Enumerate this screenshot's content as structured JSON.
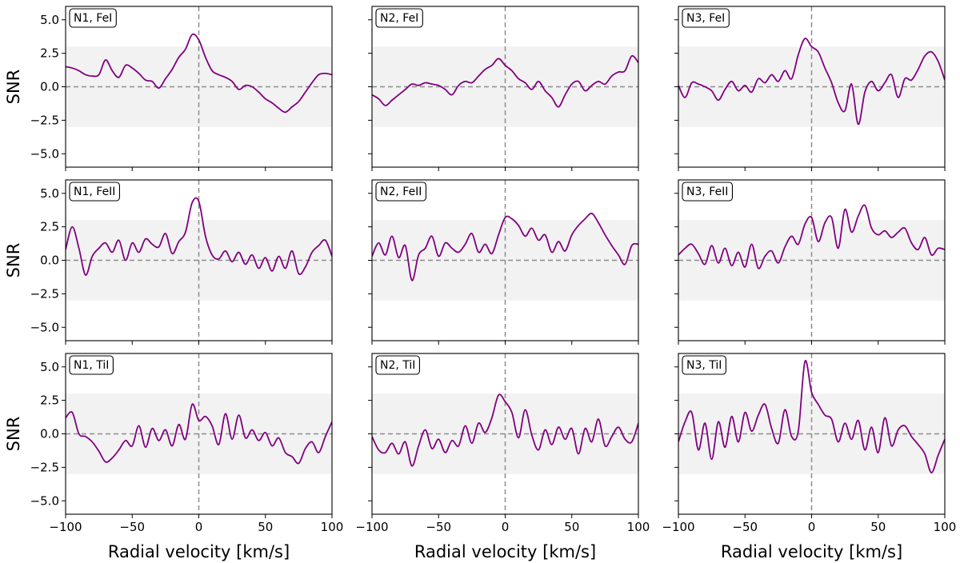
{
  "chart_data": {
    "type": "line",
    "figure": "Cross-correlation SNR maps (3 x 3 grid)",
    "xlabel": "Radial velocity [km/s]",
    "ylabel": "SNR",
    "xlim": [
      -100,
      100
    ],
    "ylim": [
      -6,
      6
    ],
    "xticks": [
      -100,
      -50,
      0,
      50,
      100
    ],
    "xtick_labels": [
      "−100",
      "−50",
      "0",
      "50",
      "100"
    ],
    "yticks": [
      5.0,
      2.5,
      0.0,
      -2.5,
      -5.0
    ],
    "ytick_labels": [
      "5.0",
      "2.5",
      "0.0",
      "−2.5",
      "−5.0"
    ],
    "significance_band": [
      -3,
      3
    ],
    "reference_lines": {
      "x": 0,
      "y": 0
    },
    "line_color": "#800080",
    "band_color": "#f2f2f2",
    "ref_line_color": "#8c8c8c",
    "panels": [
      {
        "label": "N1, FeI",
        "x": [
          -100,
          -95,
          -90,
          -85,
          -80,
          -75,
          -70,
          -65,
          -60,
          -55,
          -50,
          -45,
          -40,
          -35,
          -30,
          -25,
          -20,
          -15,
          -10,
          -5,
          0,
          5,
          10,
          15,
          20,
          25,
          30,
          35,
          40,
          45,
          50,
          55,
          60,
          65,
          70,
          75,
          80,
          85,
          90,
          95,
          100
        ],
        "y": [
          1.5,
          1.4,
          1.2,
          0.9,
          0.8,
          0.9,
          2.0,
          1.2,
          0.7,
          1.6,
          1.4,
          1.0,
          0.5,
          0.4,
          -0.1,
          0.6,
          1.3,
          2.2,
          2.8,
          3.9,
          3.5,
          2.2,
          1.2,
          0.9,
          0.7,
          0.4,
          -0.2,
          0.1,
          0.0,
          -0.4,
          -0.9,
          -1.2,
          -1.6,
          -1.9,
          -1.5,
          -1.1,
          -0.4,
          0.3,
          0.9,
          1.0,
          0.9
        ]
      },
      {
        "label": "N2, FeI",
        "x": [
          -100,
          -95,
          -90,
          -85,
          -80,
          -75,
          -70,
          -65,
          -60,
          -55,
          -50,
          -45,
          -40,
          -35,
          -30,
          -25,
          -20,
          -15,
          -10,
          -5,
          0,
          5,
          10,
          15,
          20,
          25,
          30,
          35,
          40,
          45,
          50,
          55,
          60,
          65,
          70,
          75,
          80,
          85,
          90,
          95,
          100
        ],
        "y": [
          -0.6,
          -0.9,
          -1.4,
          -1.0,
          -0.6,
          -0.2,
          0.2,
          0.1,
          0.3,
          0.2,
          0.1,
          -0.2,
          -0.6,
          0.1,
          0.4,
          0.3,
          0.8,
          1.3,
          1.6,
          2.1,
          1.6,
          1.2,
          0.6,
          0.3,
          -0.2,
          0.4,
          -0.3,
          -0.8,
          -1.5,
          -0.6,
          0.2,
          0.4,
          -0.3,
          0.1,
          0.4,
          0.2,
          0.8,
          1.1,
          1.2,
          2.3,
          1.8
        ]
      },
      {
        "label": "N3, FeI",
        "x": [
          -100,
          -95,
          -90,
          -85,
          -80,
          -75,
          -70,
          -65,
          -60,
          -55,
          -50,
          -45,
          -40,
          -35,
          -30,
          -25,
          -20,
          -15,
          -10,
          -5,
          0,
          5,
          10,
          15,
          20,
          25,
          30,
          35,
          40,
          45,
          50,
          55,
          60,
          65,
          70,
          75,
          80,
          85,
          90,
          95,
          100
        ],
        "y": [
          0.1,
          -0.8,
          0.3,
          0.2,
          0.0,
          -0.3,
          -1.0,
          -0.2,
          0.4,
          -0.3,
          0.1,
          -0.4,
          0.6,
          0.3,
          0.9,
          0.4,
          1.2,
          0.6,
          2.4,
          3.6,
          3.0,
          2.6,
          1.4,
          0.3,
          -1.2,
          -1.8,
          0.2,
          -2.8,
          -0.4,
          0.4,
          -0.3,
          0.3,
          0.9,
          -0.8,
          0.6,
          0.5,
          1.3,
          2.3,
          2.6,
          1.9,
          0.5
        ]
      },
      {
        "label": "N1, FeII",
        "x": [
          -100,
          -95,
          -90,
          -85,
          -80,
          -75,
          -70,
          -65,
          -60,
          -55,
          -50,
          -45,
          -40,
          -35,
          -30,
          -25,
          -20,
          -15,
          -10,
          -5,
          0,
          5,
          10,
          15,
          20,
          25,
          30,
          35,
          40,
          45,
          50,
          55,
          60,
          65,
          70,
          75,
          80,
          85,
          90,
          95,
          100
        ],
        "y": [
          0.8,
          2.5,
          0.9,
          -1.1,
          0.3,
          0.9,
          1.3,
          0.6,
          1.5,
          0.0,
          1.3,
          0.6,
          1.6,
          1.2,
          1.0,
          2.0,
          0.5,
          1.4,
          2.1,
          4.3,
          4.4,
          1.8,
          0.4,
          0.1,
          0.7,
          -0.1,
          0.6,
          -0.3,
          0.4,
          -0.6,
          0.2,
          -0.8,
          0.3,
          -0.6,
          0.7,
          -1.0,
          -0.5,
          0.6,
          1.1,
          1.5,
          0.3
        ]
      },
      {
        "label": "N2, FeII",
        "x": [
          -100,
          -95,
          -90,
          -85,
          -80,
          -75,
          -70,
          -65,
          -60,
          -55,
          -50,
          -45,
          -40,
          -35,
          -30,
          -25,
          -20,
          -15,
          -10,
          -5,
          0,
          5,
          10,
          15,
          20,
          25,
          30,
          35,
          40,
          45,
          50,
          55,
          60,
          65,
          70,
          75,
          80,
          85,
          90,
          95,
          100
        ],
        "y": [
          0.3,
          1.3,
          0.4,
          1.8,
          0.2,
          1.1,
          -1.5,
          0.4,
          0.9,
          1.8,
          0.3,
          1.3,
          0.9,
          0.6,
          1.2,
          2.0,
          0.6,
          1.2,
          0.5,
          1.9,
          3.2,
          3.1,
          2.6,
          1.8,
          2.4,
          1.5,
          1.9,
          0.6,
          1.4,
          0.7,
          1.9,
          2.6,
          3.1,
          3.5,
          2.8,
          1.9,
          1.1,
          0.4,
          -0.3,
          1.1,
          1.2
        ]
      },
      {
        "label": "N3, FeII",
        "x": [
          -100,
          -95,
          -90,
          -85,
          -80,
          -75,
          -70,
          -65,
          -60,
          -55,
          -50,
          -45,
          -40,
          -35,
          -30,
          -25,
          -20,
          -15,
          -10,
          -5,
          0,
          5,
          10,
          15,
          20,
          25,
          30,
          35,
          40,
          45,
          50,
          55,
          60,
          65,
          70,
          75,
          80,
          85,
          90,
          95,
          100
        ],
        "y": [
          0.4,
          0.9,
          1.2,
          0.5,
          -0.3,
          1.1,
          -0.2,
          0.9,
          -0.4,
          0.6,
          -0.5,
          1.2,
          -0.6,
          0.3,
          0.7,
          -0.2,
          1.0,
          1.8,
          1.2,
          2.7,
          3.2,
          1.4,
          2.8,
          3.2,
          0.9,
          3.8,
          2.1,
          3.3,
          4.1,
          2.4,
          1.9,
          2.2,
          1.7,
          2.1,
          2.4,
          1.3,
          0.8,
          1.7,
          0.4,
          0.9,
          0.8
        ]
      },
      {
        "label": "N1, TiI",
        "x": [
          -100,
          -95,
          -90,
          -85,
          -80,
          -75,
          -70,
          -65,
          -60,
          -55,
          -50,
          -45,
          -40,
          -35,
          -30,
          -25,
          -20,
          -15,
          -10,
          -5,
          0,
          5,
          10,
          15,
          20,
          25,
          30,
          35,
          40,
          45,
          50,
          55,
          60,
          65,
          70,
          75,
          80,
          85,
          90,
          95,
          100
        ],
        "y": [
          1.2,
          1.6,
          0.0,
          -0.2,
          -0.6,
          -1.3,
          -2.1,
          -1.8,
          -1.2,
          -0.5,
          -0.9,
          0.6,
          -1.0,
          0.4,
          -0.5,
          0.3,
          -0.9,
          0.7,
          -0.4,
          2.2,
          1.0,
          1.3,
          0.6,
          -0.8,
          1.5,
          -0.4,
          1.4,
          -0.3,
          0.3,
          -0.5,
          0.1,
          -0.9,
          -0.3,
          -1.4,
          -1.7,
          -2.2,
          -1.1,
          -0.6,
          -1.4,
          -0.2,
          0.9
        ]
      },
      {
        "label": "N2, TiI",
        "x": [
          -100,
          -95,
          -90,
          -85,
          -80,
          -75,
          -70,
          -65,
          -60,
          -55,
          -50,
          -45,
          -40,
          -35,
          -30,
          -25,
          -20,
          -15,
          -10,
          -5,
          0,
          5,
          10,
          15,
          20,
          25,
          30,
          35,
          40,
          45,
          50,
          55,
          60,
          65,
          70,
          75,
          80,
          85,
          90,
          95,
          100
        ],
        "y": [
          -0.2,
          -1.2,
          -1.4,
          -0.7,
          -1.5,
          -0.6,
          -2.4,
          -0.9,
          0.3,
          -1.1,
          -0.4,
          -1.4,
          -0.5,
          -0.9,
          0.6,
          -0.7,
          0.8,
          0.1,
          1.2,
          2.9,
          2.4,
          1.6,
          -0.3,
          1.8,
          -0.1,
          -1.2,
          0.3,
          -0.8,
          0.5,
          -0.4,
          0.4,
          -1.5,
          0.4,
          -0.6,
          1.1,
          -0.9,
          -0.2,
          0.5,
          -0.4,
          -0.6,
          0.8
        ]
      },
      {
        "label": "N3, TiI",
        "x": [
          -100,
          -95,
          -90,
          -85,
          -80,
          -75,
          -70,
          -65,
          -60,
          -55,
          -50,
          -45,
          -40,
          -35,
          -30,
          -25,
          -20,
          -15,
          -10,
          -5,
          0,
          5,
          10,
          15,
          20,
          25,
          30,
          35,
          40,
          45,
          50,
          55,
          60,
          65,
          70,
          75,
          80,
          85,
          90,
          95,
          100
        ],
        "y": [
          -0.6,
          0.9,
          1.6,
          -1.2,
          0.8,
          -1.9,
          0.9,
          -1.0,
          1.3,
          -0.6,
          1.6,
          0.2,
          1.4,
          2.2,
          0.4,
          -0.7,
          1.8,
          -0.2,
          0.2,
          5.4,
          3.1,
          2.2,
          1.4,
          1.1,
          -0.6,
          0.8,
          -0.4,
          1.0,
          -1.2,
          0.5,
          -1.4,
          1.2,
          -0.9,
          0.3,
          0.6,
          -0.2,
          -0.8,
          -1.5,
          -2.9,
          -1.6,
          -0.4
        ]
      }
    ]
  }
}
